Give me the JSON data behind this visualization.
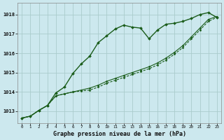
{
  "title": "Graphe pression niveau de la mer (hPa)",
  "background_color": "#cce8ee",
  "grid_color": "#aacccc",
  "line_color": "#1a5c1a",
  "x_labels": [
    "0",
    "1",
    "2",
    "3",
    "4",
    "5",
    "6",
    "7",
    "8",
    "9",
    "10",
    "11",
    "12",
    "13",
    "14",
    "15",
    "16",
    "17",
    "18",
    "19",
    "20",
    "21",
    "22",
    "23"
  ],
  "yticks": [
    1013,
    1014,
    1015,
    1016,
    1017,
    1018
  ],
  "ylim": [
    1012.4,
    1018.6
  ],
  "xlim": [
    -0.5,
    23.5
  ],
  "series1": [
    1012.65,
    1012.75,
    1013.05,
    1013.3,
    1013.95,
    1014.25,
    1014.95,
    1015.45,
    1015.85,
    1016.55,
    1016.9,
    1017.25,
    1017.45,
    1017.35,
    1017.3,
    1016.75,
    1017.2,
    1017.5,
    1017.55,
    1017.65,
    1017.8,
    1018.0,
    1018.1,
    1017.85
  ],
  "series2": [
    1012.65,
    1012.75,
    1013.05,
    1013.3,
    1013.8,
    1013.9,
    1014.0,
    1014.1,
    1014.2,
    1014.35,
    1014.55,
    1014.7,
    1014.85,
    1015.0,
    1015.15,
    1015.3,
    1015.5,
    1015.75,
    1016.05,
    1016.4,
    1016.85,
    1017.3,
    1017.75,
    1017.9
  ],
  "series3": [
    1012.65,
    1012.75,
    1013.05,
    1013.3,
    1013.8,
    1013.9,
    1014.0,
    1014.05,
    1014.1,
    1014.25,
    1014.45,
    1014.6,
    1014.75,
    1014.9,
    1015.05,
    1015.2,
    1015.4,
    1015.65,
    1015.95,
    1016.3,
    1016.75,
    1017.2,
    1017.65,
    1017.85
  ]
}
